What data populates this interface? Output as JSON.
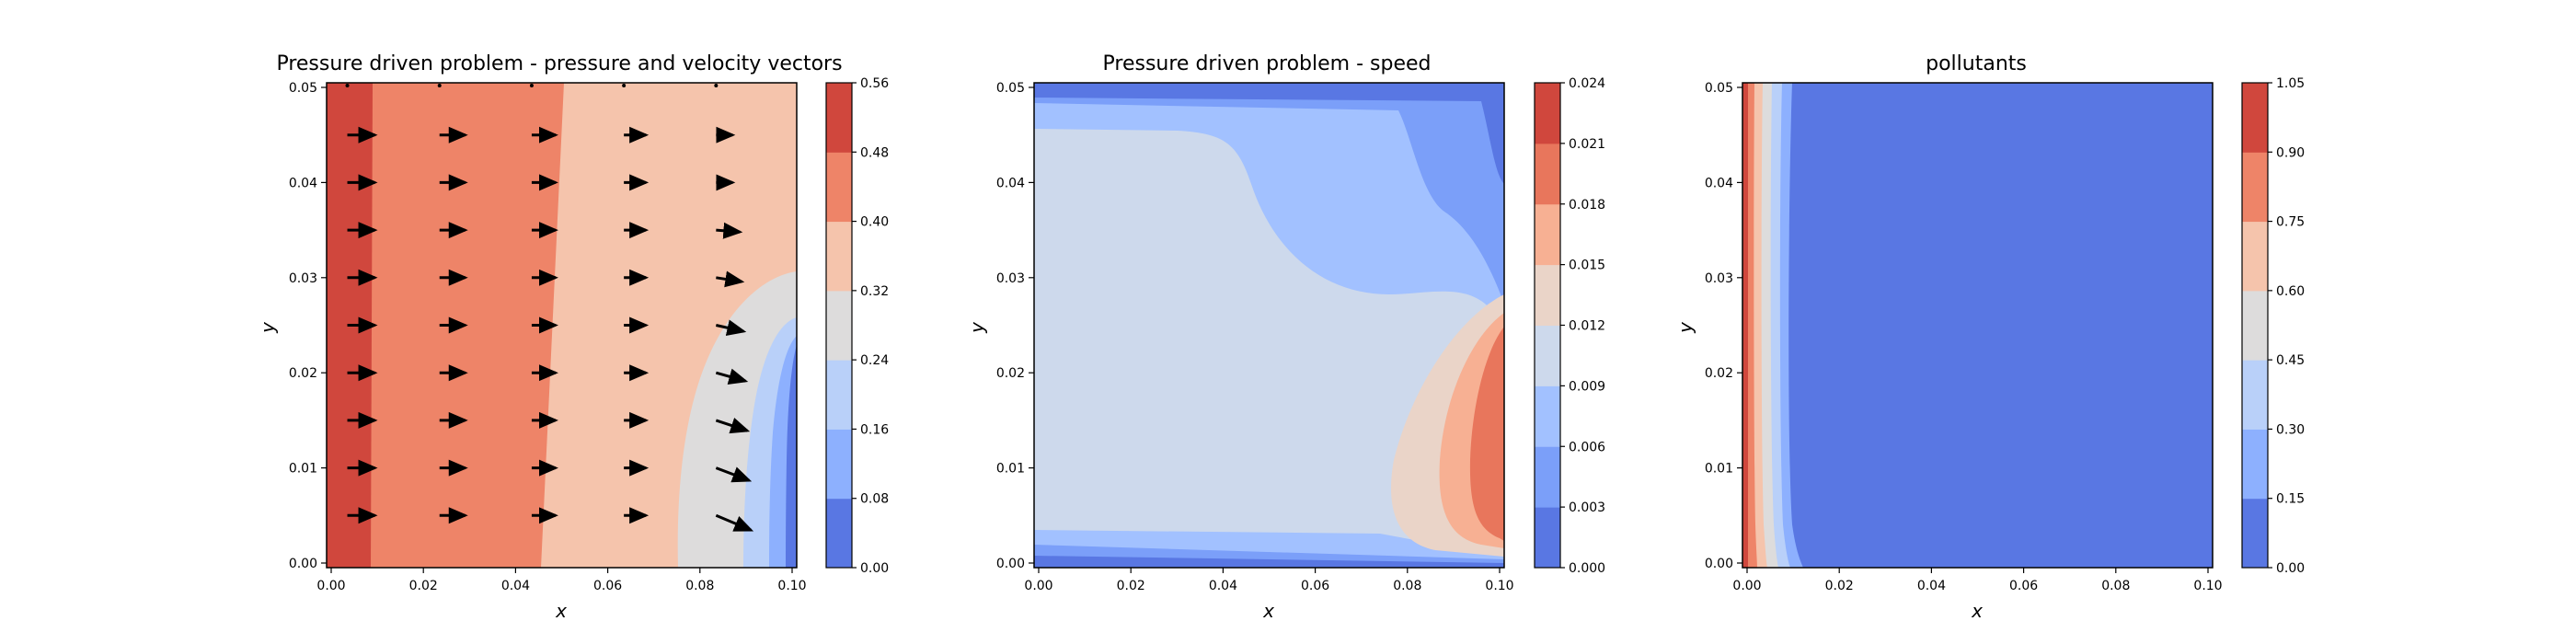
{
  "chart_data": [
    {
      "type": "heatmap",
      "subtype": "filled-contour-with-quiver",
      "title": "Pressure driven problem - pressure and velocity vectors",
      "xlabel": "x",
      "ylabel": "y",
      "xlim": [
        0.0,
        0.1
      ],
      "ylim": [
        0.0,
        0.05
      ],
      "x_ticks": [
        "0.00",
        "0.02",
        "0.04",
        "0.06",
        "0.08",
        "0.10"
      ],
      "y_ticks": [
        "0.00",
        "0.01",
        "0.02",
        "0.03",
        "0.04",
        "0.05"
      ],
      "colormap": "coolwarm",
      "levels": [
        0.0,
        0.08,
        0.16,
        0.24,
        0.32,
        0.4,
        0.48,
        0.56
      ],
      "level_colors": [
        "#5977e3",
        "#8db0fe",
        "#b9d0f9",
        "#dddcdc",
        "#f5c4ac",
        "#ee8468",
        "#d0473d"
      ],
      "colorbar_ticks": [
        "0.00",
        "0.08",
        "0.16",
        "0.24",
        "0.32",
        "0.40",
        "0.48",
        "0.56"
      ],
      "contour_boundaries_x": {
        "0.48": 0.0095,
        "0.40": 0.047,
        "0.32": 0.085,
        "0.24": 0.093,
        "0.16": 0.098
      },
      "quiver": {
        "x": [
          0.0035,
          0.0235,
          0.0435,
          0.0635,
          0.0835
        ],
        "y": [
          0.005,
          0.01,
          0.015,
          0.02,
          0.025,
          0.03,
          0.035,
          0.04,
          0.045
        ],
        "speed_scale_note": "arrows point in +x, tilting downward near x=0.085 for y<0.035"
      }
    },
    {
      "type": "heatmap",
      "subtype": "filled-contour",
      "title": "Pressure driven problem - speed",
      "xlabel": "x",
      "ylabel": "y",
      "xlim": [
        0.0,
        0.1
      ],
      "ylim": [
        0.0,
        0.05
      ],
      "x_ticks": [
        "0.00",
        "0.02",
        "0.04",
        "0.06",
        "0.08",
        "0.10"
      ],
      "y_ticks": [
        "0.00",
        "0.01",
        "0.02",
        "0.03",
        "0.04",
        "0.05"
      ],
      "colormap": "coolwarm",
      "levels": [
        0.0,
        0.003,
        0.006,
        0.009,
        0.012,
        0.015,
        0.018,
        0.021,
        0.024
      ],
      "level_colors": [
        "#5977e3",
        "#7b9ff9",
        "#a2c1ff",
        "#cdd9ec",
        "#ead4c8",
        "#f7b093",
        "#e8765c",
        "#d0473d"
      ],
      "colorbar_ticks": [
        "0.000",
        "0.003",
        "0.006",
        "0.009",
        "0.012",
        "0.015",
        "0.018",
        "0.021",
        "0.024"
      ]
    },
    {
      "type": "heatmap",
      "subtype": "filled-contour",
      "title": "pollutants",
      "xlabel": "x",
      "ylabel": "y",
      "xlim": [
        0.0,
        0.1
      ],
      "ylim": [
        0.0,
        0.05
      ],
      "x_ticks": [
        "0.00",
        "0.02",
        "0.04",
        "0.06",
        "0.08",
        "0.10"
      ],
      "y_ticks": [
        "0.00",
        "0.01",
        "0.02",
        "0.03",
        "0.04",
        "0.05"
      ],
      "colormap": "coolwarm",
      "levels": [
        0.0,
        0.15,
        0.3,
        0.45,
        0.6,
        0.75,
        0.9,
        1.05
      ],
      "level_colors": [
        "#5977e3",
        "#8db0fe",
        "#b9d0f9",
        "#dddcdc",
        "#f5c4ac",
        "#ee8468",
        "#d0473d"
      ],
      "colorbar_ticks": [
        "0.00",
        "0.15",
        "0.30",
        "0.45",
        "0.60",
        "0.75",
        "0.90",
        "1.05"
      ],
      "contour_boundaries_x": {
        "0.90": 0.001,
        "0.75": 0.003,
        "0.60": 0.005,
        "0.45": 0.007,
        "0.30": 0.0085,
        "0.15": 0.0095
      }
    }
  ]
}
